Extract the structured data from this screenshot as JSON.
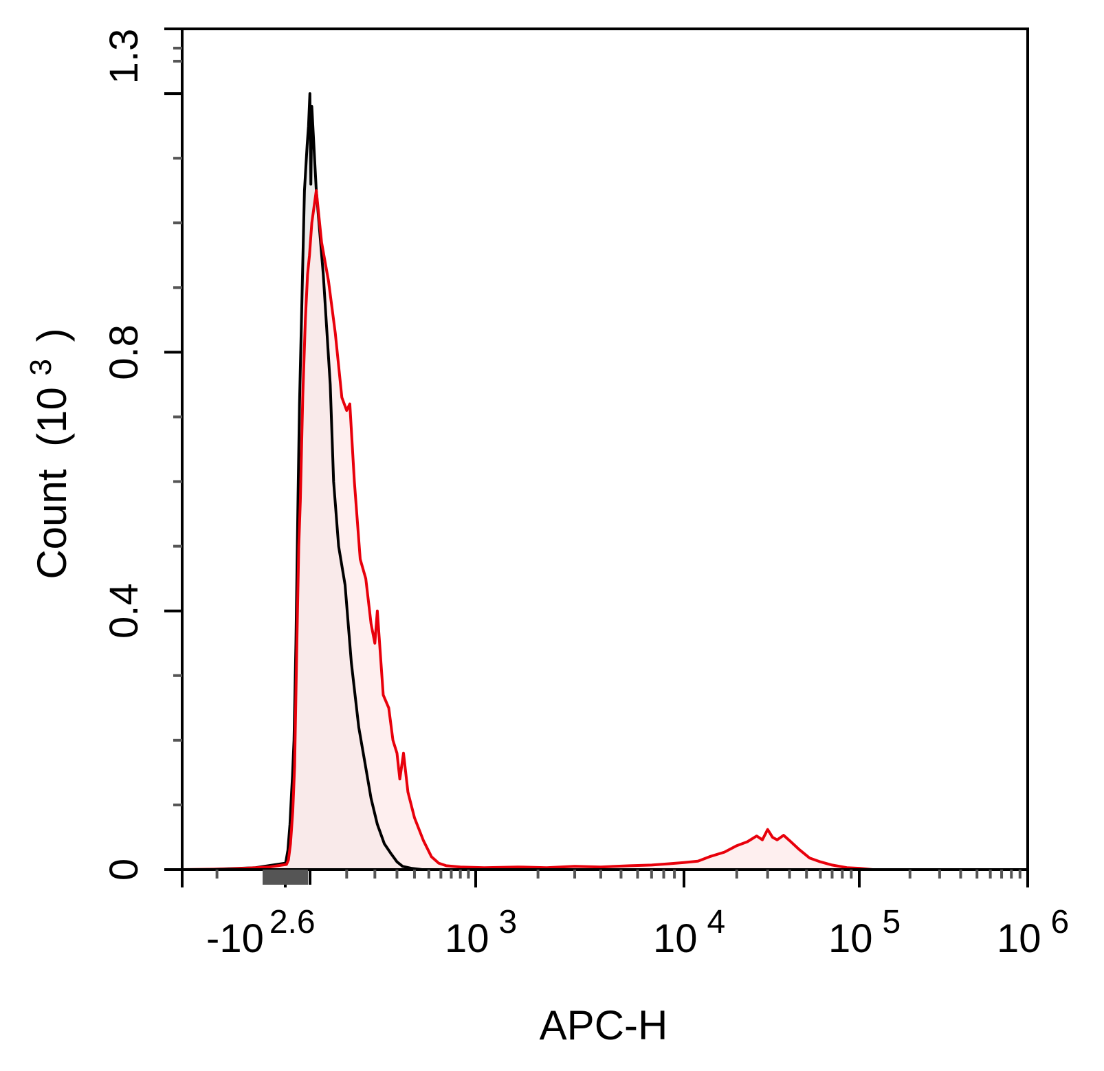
{
  "chart_data": {
    "type": "area",
    "title": "",
    "xlabel": "APC-H",
    "ylabel": {
      "base": "Count",
      "unit_open": "(10",
      "unit_exp": "3",
      "unit_close": ")"
    },
    "x_scale": "biexponential",
    "x_ticks": [
      {
        "value": -398,
        "base": "-10",
        "exp": "2.6"
      },
      {
        "value": 1000,
        "base": "10",
        "exp": "3"
      },
      {
        "value": 10000,
        "base": "10",
        "exp": "4"
      },
      {
        "value": 100000,
        "base": "10",
        "exp": "5"
      },
      {
        "value": 1000000,
        "base": "10",
        "exp": "6"
      }
    ],
    "ylim": [
      0,
      1.3
    ],
    "y_ticks": [
      {
        "value": 0,
        "label": "0"
      },
      {
        "value": 0.4,
        "label": "0.4"
      },
      {
        "value": 0.8,
        "label": "0.8"
      },
      {
        "value": 1.3,
        "label": "1.3"
      }
    ],
    "series": [
      {
        "color": "#000000",
        "fill": "#d9d9d9",
        "points": [
          [
            -520,
            0
          ],
          [
            -440,
            0.003
          ],
          [
            -390,
            0.01
          ],
          [
            -340,
            0.03
          ],
          [
            -300,
            0.07
          ],
          [
            -270,
            0.12
          ],
          [
            -255,
            0.145
          ],
          [
            -230,
            0.2
          ],
          [
            -200,
            0.35
          ],
          [
            -170,
            0.58
          ],
          [
            -150,
            0.72
          ],
          [
            -120,
            0.88
          ],
          [
            -90,
            1.05
          ],
          [
            -60,
            1.12
          ],
          [
            -45,
            1.15
          ],
          [
            -30,
            1.2
          ],
          [
            -20,
            1.06
          ],
          [
            -10,
            1.18
          ],
          [
            10,
            1.05
          ],
          [
            30,
            0.92
          ],
          [
            50,
            0.75
          ],
          [
            60,
            0.6
          ],
          [
            75,
            0.5
          ],
          [
            95,
            0.44
          ],
          [
            115,
            0.32
          ],
          [
            140,
            0.22
          ],
          [
            160,
            0.17
          ],
          [
            185,
            0.11
          ],
          [
            210,
            0.07
          ],
          [
            240,
            0.04
          ],
          [
            270,
            0.025
          ],
          [
            300,
            0.012
          ],
          [
            330,
            0.005
          ],
          [
            380,
            0.002
          ],
          [
            450,
            0
          ]
        ]
      },
      {
        "color": "#e8000b",
        "fill": "#fde9e9",
        "points": [
          [
            -560,
            0
          ],
          [
            -480,
            0.001
          ],
          [
            -420,
            0.004
          ],
          [
            -370,
            0.008
          ],
          [
            -330,
            0.015
          ],
          [
            -290,
            0.04
          ],
          [
            -250,
            0.09
          ],
          [
            -220,
            0.16
          ],
          [
            -190,
            0.33
          ],
          [
            -160,
            0.5
          ],
          [
            -140,
            0.57
          ],
          [
            -110,
            0.73
          ],
          [
            -80,
            0.85
          ],
          [
            -55,
            0.92
          ],
          [
            -35,
            0.95
          ],
          [
            -10,
            1.0
          ],
          [
            10,
            1.05
          ],
          [
            25,
            0.97
          ],
          [
            45,
            0.91
          ],
          [
            65,
            0.83
          ],
          [
            85,
            0.73
          ],
          [
            100,
            0.71
          ],
          [
            110,
            0.72
          ],
          [
            125,
            0.6
          ],
          [
            145,
            0.48
          ],
          [
            165,
            0.45
          ],
          [
            185,
            0.38
          ],
          [
            200,
            0.35
          ],
          [
            210,
            0.4
          ],
          [
            235,
            0.27
          ],
          [
            260,
            0.25
          ],
          [
            280,
            0.2
          ],
          [
            300,
            0.18
          ],
          [
            315,
            0.14
          ],
          [
            335,
            0.18
          ],
          [
            360,
            0.12
          ],
          [
            400,
            0.08
          ],
          [
            460,
            0.045
          ],
          [
            520,
            0.02
          ],
          [
            580,
            0.01
          ],
          [
            650,
            0.006
          ],
          [
            800,
            0.004
          ],
          [
            1100,
            0.003
          ],
          [
            1600,
            0.004
          ],
          [
            2200,
            0.003
          ],
          [
            3000,
            0.005
          ],
          [
            4000,
            0.004
          ],
          [
            5500,
            0.006
          ],
          [
            7000,
            0.007
          ],
          [
            8500,
            0.009
          ],
          [
            10000,
            0.011
          ],
          [
            12000,
            0.013
          ],
          [
            14000,
            0.02
          ],
          [
            17000,
            0.027
          ],
          [
            20000,
            0.037
          ],
          [
            23000,
            0.043
          ],
          [
            26000,
            0.052
          ],
          [
            28000,
            0.046
          ],
          [
            30000,
            0.062
          ],
          [
            32000,
            0.05
          ],
          [
            34000,
            0.046
          ],
          [
            37000,
            0.053
          ],
          [
            40000,
            0.045
          ],
          [
            45000,
            0.032
          ],
          [
            52000,
            0.018
          ],
          [
            60000,
            0.012
          ],
          [
            70000,
            0.007
          ],
          [
            85000,
            0.003
          ],
          [
            100000,
            0.002
          ],
          [
            120000,
            0
          ]
        ]
      }
    ]
  }
}
